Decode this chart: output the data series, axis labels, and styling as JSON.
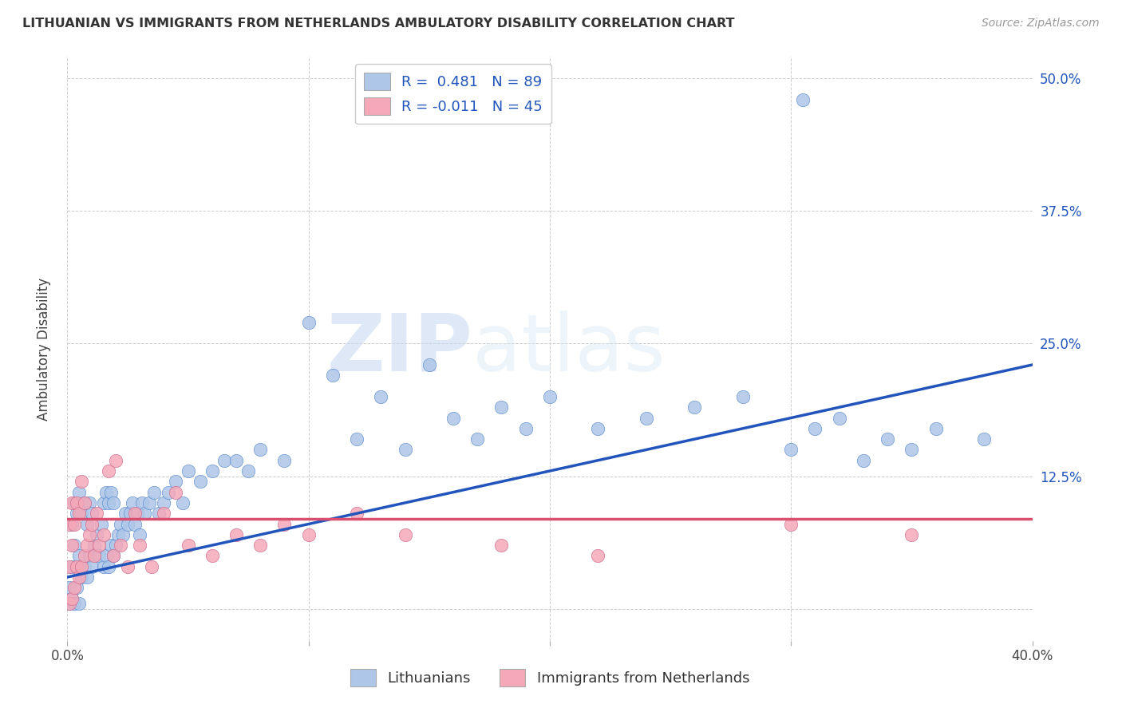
{
  "title": "LITHUANIAN VS IMMIGRANTS FROM NETHERLANDS AMBULATORY DISABILITY CORRELATION CHART",
  "source": "Source: ZipAtlas.com",
  "ylabel": "Ambulatory Disability",
  "watermark_zip": "ZIP",
  "watermark_atlas": "atlas",
  "xmin": 0.0,
  "xmax": 0.4,
  "ymin": -0.03,
  "ymax": 0.52,
  "xticks": [
    0.0,
    0.1,
    0.2,
    0.3,
    0.4
  ],
  "yticks": [
    0.0,
    0.125,
    0.25,
    0.375,
    0.5
  ],
  "ytick_labels": [
    "",
    "12.5%",
    "25.0%",
    "37.5%",
    "50.0%"
  ],
  "xtick_labels": [
    "0.0%",
    "",
    "",
    "",
    "40.0%"
  ],
  "legend_labels": [
    "Lithuanians",
    "Immigrants from Netherlands"
  ],
  "blue_R": 0.481,
  "blue_N": 89,
  "pink_R": -0.011,
  "pink_N": 45,
  "blue_color": "#aec6e8",
  "pink_color": "#f4a8b8",
  "blue_line_color": "#2255bb",
  "pink_line_color": "#d94f70",
  "tick_color": "#2255bb",
  "background_color": "#ffffff",
  "grid_color": "#cccccc",
  "blue_line_y0": 0.03,
  "blue_line_y1": 0.23,
  "pink_line_y0": 0.085,
  "pink_line_y1": 0.085,
  "blue_x": [
    0.001,
    0.001,
    0.002,
    0.002,
    0.002,
    0.003,
    0.003,
    0.003,
    0.004,
    0.004,
    0.005,
    0.005,
    0.005,
    0.006,
    0.006,
    0.007,
    0.007,
    0.008,
    0.008,
    0.009,
    0.009,
    0.01,
    0.01,
    0.011,
    0.012,
    0.013,
    0.014,
    0.015,
    0.015,
    0.016,
    0.016,
    0.017,
    0.017,
    0.018,
    0.018,
    0.019,
    0.019,
    0.02,
    0.021,
    0.022,
    0.023,
    0.024,
    0.025,
    0.026,
    0.027,
    0.028,
    0.029,
    0.03,
    0.031,
    0.032,
    0.034,
    0.036,
    0.038,
    0.04,
    0.042,
    0.045,
    0.048,
    0.05,
    0.055,
    0.06,
    0.065,
    0.07,
    0.075,
    0.08,
    0.09,
    0.1,
    0.11,
    0.12,
    0.13,
    0.14,
    0.15,
    0.16,
    0.17,
    0.18,
    0.19,
    0.2,
    0.22,
    0.24,
    0.26,
    0.28,
    0.3,
    0.305,
    0.31,
    0.32,
    0.33,
    0.34,
    0.35,
    0.36,
    0.38
  ],
  "blue_y": [
    0.005,
    0.02,
    0.01,
    0.04,
    0.08,
    0.005,
    0.06,
    0.1,
    0.02,
    0.09,
    0.005,
    0.05,
    0.11,
    0.03,
    0.09,
    0.04,
    0.1,
    0.03,
    0.08,
    0.05,
    0.1,
    0.04,
    0.09,
    0.06,
    0.07,
    0.05,
    0.08,
    0.04,
    0.1,
    0.05,
    0.11,
    0.04,
    0.1,
    0.06,
    0.11,
    0.05,
    0.1,
    0.06,
    0.07,
    0.08,
    0.07,
    0.09,
    0.08,
    0.09,
    0.1,
    0.08,
    0.09,
    0.07,
    0.1,
    0.09,
    0.1,
    0.11,
    0.09,
    0.1,
    0.11,
    0.12,
    0.1,
    0.13,
    0.12,
    0.13,
    0.14,
    0.14,
    0.13,
    0.15,
    0.14,
    0.27,
    0.22,
    0.16,
    0.2,
    0.15,
    0.23,
    0.18,
    0.16,
    0.19,
    0.17,
    0.2,
    0.17,
    0.18,
    0.19,
    0.2,
    0.15,
    0.48,
    0.17,
    0.18,
    0.14,
    0.16,
    0.15,
    0.17,
    0.16
  ],
  "pink_x": [
    0.001,
    0.001,
    0.001,
    0.002,
    0.002,
    0.002,
    0.003,
    0.003,
    0.004,
    0.004,
    0.005,
    0.005,
    0.006,
    0.006,
    0.007,
    0.007,
    0.008,
    0.009,
    0.01,
    0.011,
    0.012,
    0.013,
    0.015,
    0.017,
    0.019,
    0.02,
    0.022,
    0.025,
    0.028,
    0.03,
    0.035,
    0.04,
    0.045,
    0.05,
    0.06,
    0.07,
    0.08,
    0.09,
    0.1,
    0.12,
    0.14,
    0.18,
    0.22,
    0.3,
    0.35
  ],
  "pink_y": [
    0.005,
    0.04,
    0.08,
    0.01,
    0.06,
    0.1,
    0.02,
    0.08,
    0.04,
    0.1,
    0.03,
    0.09,
    0.04,
    0.12,
    0.05,
    0.1,
    0.06,
    0.07,
    0.08,
    0.05,
    0.09,
    0.06,
    0.07,
    0.13,
    0.05,
    0.14,
    0.06,
    0.04,
    0.09,
    0.06,
    0.04,
    0.09,
    0.11,
    0.06,
    0.05,
    0.07,
    0.06,
    0.08,
    0.07,
    0.09,
    0.07,
    0.06,
    0.05,
    0.08,
    0.07
  ]
}
